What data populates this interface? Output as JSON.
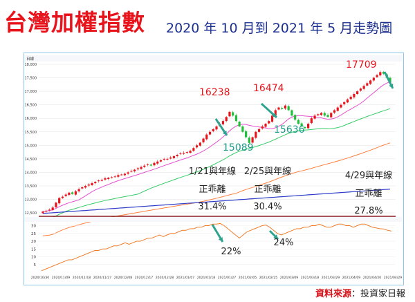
{
  "title": "台灣加權指數",
  "subtitle": "2020 年 10 月到 2021 年 5 月走勢圖",
  "source_label": "資料來源",
  "source_name": "：投資家日報",
  "colors": {
    "title_red": "#e8141c",
    "subtitle_blue": "#1b2f8f",
    "up_candle": "#e8141c",
    "down_candle": "#1fbf3a",
    "ma_short": "#e44fcf",
    "ma_mid": "#33cc66",
    "ma_long": "#ff7f3c",
    "ma_year": "#2e3dc8",
    "bias_line": "#f07c2a",
    "arrow": "#2ea38f",
    "label_red": "#e8141c",
    "label_teal": "#1a9a86"
  },
  "chart_data": {
    "type": "candlestick",
    "header_info": "日線",
    "ylim": [
      12400,
      18000
    ],
    "y_ticks": [
      "12,500",
      "13,000",
      "13,500",
      "14,000",
      "14,500",
      "15,000",
      "15,500",
      "16,000",
      "16,500",
      "17,000",
      "17,500",
      "18,000"
    ],
    "x_ticks": [
      "2020/10/30",
      "2020/11/09",
      "2020/11/18",
      "2020/11/27",
      "2020/12/08",
      "2020/12/17",
      "2020/12/28",
      "2021/01/07",
      "2021/01/18",
      "2021/01/27",
      "2021/02/05",
      "2021/02/25",
      "2021/03/09",
      "2021/03/18",
      "2021/03/29",
      "2021/04/09",
      "2021/04/20",
      "2021/04/29"
    ],
    "closes": [
      12550,
      12580,
      12620,
      12700,
      12880,
      13050,
      13100,
      13180,
      13250,
      13200,
      13300,
      13380,
      13450,
      13500,
      13550,
      13600,
      13650,
      13700,
      13720,
      13780,
      13800,
      13820,
      13850,
      13900,
      13920,
      13950,
      14000,
      14050,
      14100,
      14150,
      14200,
      14250,
      14300,
      14250,
      14350,
      14400,
      14450,
      14500,
      14500,
      14550,
      14600,
      14650,
      14700,
      14720,
      14750,
      14800,
      14900,
      15000,
      15100,
      15250,
      15400,
      15500,
      15600,
      15700,
      15800,
      15900,
      16050,
      16238,
      16100,
      15900,
      15700,
      15500,
      15300,
      15089,
      15300,
      15500,
      15600,
      15700,
      15800,
      15900,
      16100,
      16300,
      16400,
      16350,
      16474,
      16300,
      16100,
      15950,
      15800,
      15700,
      15636,
      15800,
      16000,
      16100,
      16150,
      16200,
      16100,
      16050,
      16200,
      16300,
      16400,
      16500,
      16600,
      16700,
      16800,
      16900,
      17000,
      17100,
      17200,
      17300,
      17400,
      17500,
      17600,
      17709,
      17650,
      17500,
      17300
    ],
    "bias_ylim": [
      0,
      32
    ],
    "bias_y_ticks": [
      "5",
      "10",
      "15",
      "20",
      "25",
      "30"
    ],
    "bias_values": [
      1,
      2,
      3,
      4,
      5,
      6,
      7,
      8,
      8,
      9,
      10,
      11,
      12,
      13,
      14,
      14,
      15,
      15,
      16,
      17,
      17,
      18,
      19,
      18,
      19,
      20,
      20,
      21,
      22,
      22,
      23,
      24,
      23,
      24,
      25,
      25,
      26,
      27,
      27,
      28,
      28,
      29,
      29,
      30,
      30,
      31,
      31,
      31.4,
      30,
      28,
      26,
      24,
      22,
      24,
      26,
      27,
      28,
      29,
      30,
      30.4,
      29,
      27,
      25,
      24,
      25,
      26,
      27,
      28,
      28,
      29,
      29,
      30,
      30,
      31,
      30,
      29,
      29,
      30,
      31,
      31,
      30,
      30,
      29,
      30,
      31,
      31,
      30,
      29,
      28.5,
      28,
      27.8,
      27,
      26.5
    ],
    "markers": [
      {
        "label": "16238",
        "color": "red"
      },
      {
        "label": "15089",
        "color": "teal"
      },
      {
        "label": "16474",
        "color": "red"
      },
      {
        "label": "15636",
        "color": "teal"
      },
      {
        "label": "17709",
        "color": "red"
      }
    ],
    "annotations": [
      {
        "line1": "1/21與年線",
        "line2": "正乖離",
        "line3": "31.4%"
      },
      {
        "line1": "2/25與年線",
        "line2": "正乖離",
        "line3": "30.4%"
      },
      {
        "line1": "4/29與年線",
        "line2": "正乖離",
        "line3": "27.8%"
      }
    ],
    "bias_drops": [
      "22%",
      "24%"
    ]
  }
}
